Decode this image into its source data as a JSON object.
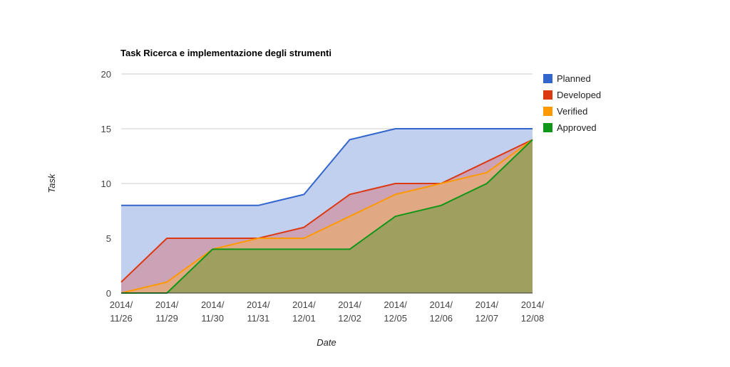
{
  "chart_data": {
    "type": "area",
    "title": "Task Ricerca e implementazione degli strumenti",
    "xlabel": "Date",
    "ylabel": "Task",
    "ylim": [
      0,
      20
    ],
    "yticks": [
      0,
      5,
      10,
      15,
      20
    ],
    "grid": true,
    "legend_position": "right",
    "categories": [
      [
        "2014/",
        "11/26"
      ],
      [
        "2014/",
        "11/29"
      ],
      [
        "2014/",
        "11/30"
      ],
      [
        "2014/",
        "11/31"
      ],
      [
        "2014/",
        "12/01"
      ],
      [
        "2014/",
        "12/02"
      ],
      [
        "2014/",
        "12/05"
      ],
      [
        "2014/",
        "12/06"
      ],
      [
        "2014/",
        "12/07"
      ],
      [
        "2014/",
        "12/08"
      ]
    ],
    "series": [
      {
        "name": "Planned",
        "color": "#3366cc",
        "fill": "#c2d0f0",
        "values": [
          8,
          8,
          8,
          8,
          9,
          14,
          15,
          15,
          15,
          15
        ]
      },
      {
        "name": "Developed",
        "color": "#dc3912",
        "fill": "#cca3b6",
        "values": [
          1,
          5,
          5,
          5,
          6,
          9,
          10,
          10,
          12,
          14
        ]
      },
      {
        "name": "Verified",
        "color": "#ff9900",
        "fill": "#e1a884",
        "values": [
          0,
          1,
          4,
          5,
          5,
          7,
          9,
          10,
          11,
          14
        ]
      },
      {
        "name": "Approved",
        "color": "#109618",
        "fill": "#9f9f5f",
        "values": [
          0,
          0,
          4,
          4,
          4,
          4,
          7,
          8,
          10,
          14
        ]
      }
    ]
  }
}
